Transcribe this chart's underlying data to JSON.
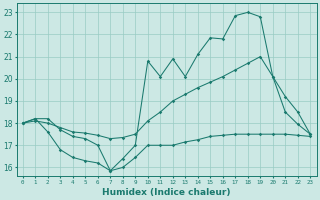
{
  "xlabel": "Humidex (Indice chaleur)",
  "x_values": [
    0,
    1,
    2,
    3,
    4,
    5,
    6,
    7,
    8,
    9,
    10,
    11,
    12,
    13,
    14,
    15,
    16,
    17,
    18,
    19,
    20,
    21,
    22,
    23
  ],
  "line_top": [
    18.0,
    18.2,
    18.2,
    17.7,
    17.4,
    17.3,
    17.0,
    15.85,
    16.4,
    17.0,
    20.8,
    20.1,
    20.9,
    20.1,
    21.1,
    21.85,
    21.8,
    22.85,
    23.0,
    22.8,
    20.1,
    18.5,
    17.95,
    17.5
  ],
  "line_mid": [
    18.0,
    18.1,
    18.0,
    17.8,
    17.6,
    17.55,
    17.45,
    17.3,
    17.35,
    17.5,
    18.1,
    18.5,
    19.0,
    19.3,
    19.6,
    19.85,
    20.1,
    20.4,
    20.7,
    21.0,
    20.1,
    19.2,
    18.5,
    17.5
  ],
  "line_bot": [
    18.0,
    18.2,
    17.6,
    16.8,
    16.45,
    16.3,
    16.2,
    15.85,
    16.0,
    16.45,
    17.0,
    17.0,
    17.0,
    17.15,
    17.25,
    17.4,
    17.45,
    17.5,
    17.5,
    17.5,
    17.5,
    17.5,
    17.45,
    17.4
  ],
  "line_color": "#1a7a6e",
  "bg_color": "#cce8e4",
  "grid_color": "#99ccc4",
  "ylim": [
    15.6,
    23.4
  ],
  "xlim": [
    -0.5,
    23.5
  ],
  "yticks": [
    16,
    17,
    18,
    19,
    20,
    21,
    22,
    23
  ],
  "xticks": [
    0,
    1,
    2,
    3,
    4,
    5,
    6,
    7,
    8,
    9,
    10,
    11,
    12,
    13,
    14,
    15,
    16,
    17,
    18,
    19,
    20,
    21,
    22,
    23
  ]
}
